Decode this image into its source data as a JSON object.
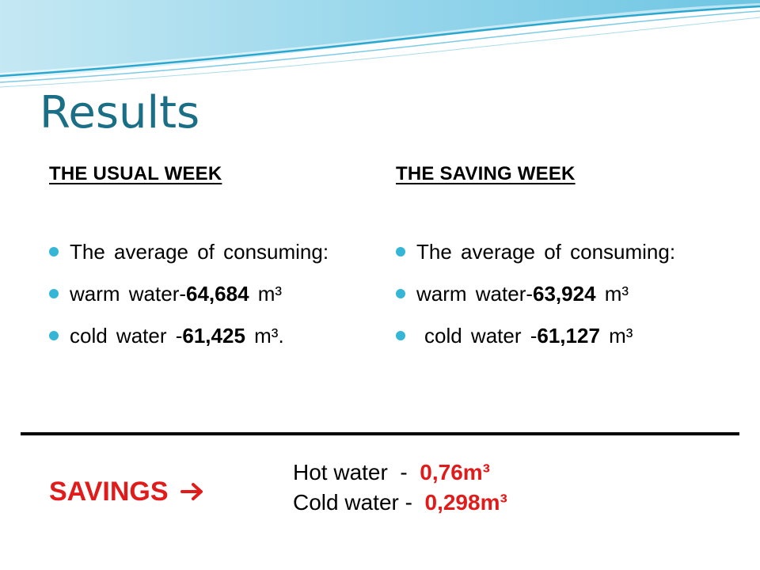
{
  "slide": {
    "title": "Results",
    "accent_color": "#35b6d6",
    "title_color": "#1a6f86"
  },
  "columns": {
    "usual": {
      "heading": "THE USUAL WEEK",
      "average": "The average of consuming:",
      "warm_prefix": "warm water-",
      "warm_value": "64,684",
      "warm_unit": " m³",
      "cold_prefix": "cold water -",
      "cold_value": "61,425",
      "cold_unit": " m³."
    },
    "saving": {
      "heading": "THE SAVING WEEK",
      "average": "The average of consuming:",
      "warm_prefix": "warm water-",
      "warm_value": "63,924",
      "warm_unit": " m³",
      "cold_prefix": "cold water -",
      "cold_value": "61,127",
      "cold_unit": " m³"
    }
  },
  "savings": {
    "label": "SAVINGS",
    "arrow_icon": "right-arrow-icon",
    "hot_label": "Hot water  -  ",
    "hot_value": "0,76m³",
    "cold_label": "Cold water -  ",
    "cold_value": "0,298m³",
    "highlight_color": "#e11a1a"
  }
}
